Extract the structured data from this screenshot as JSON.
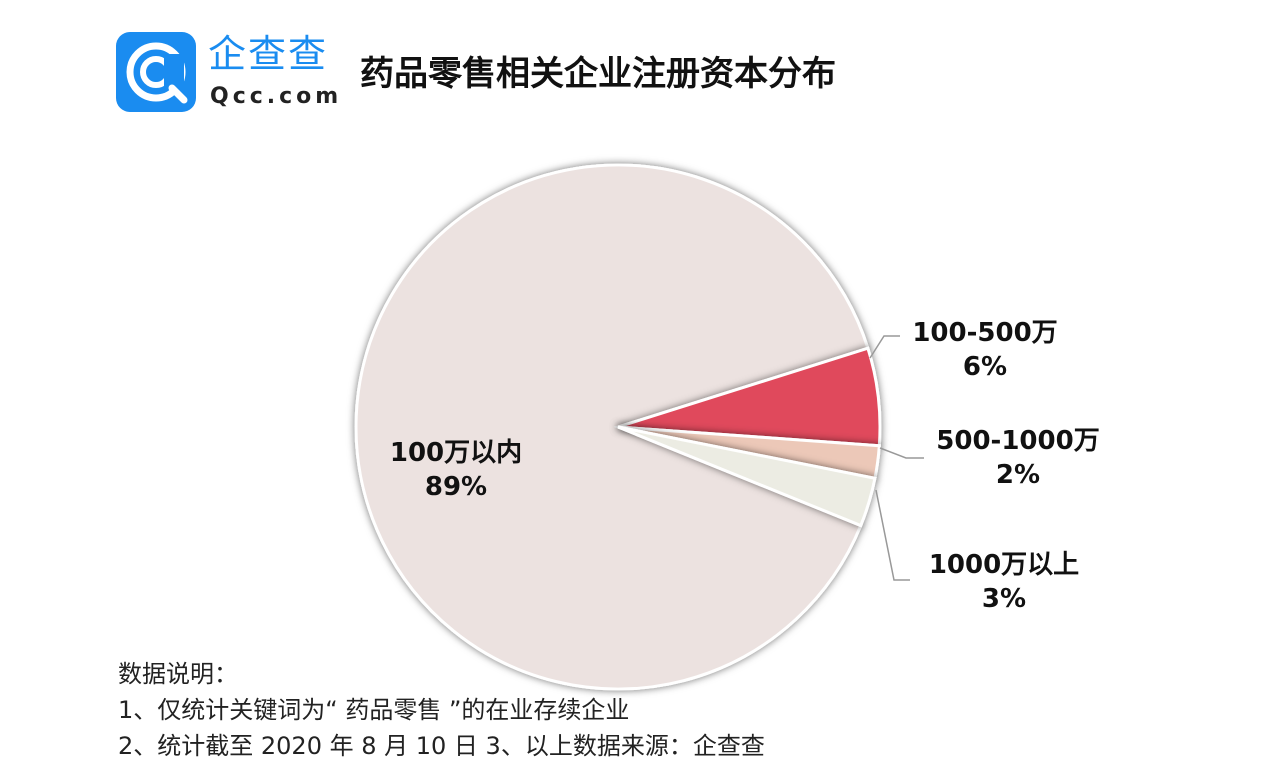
{
  "brand": {
    "name_cn": "企查查",
    "name_en": "Qcc.com",
    "color": "#1a8cf0"
  },
  "title": "药品零售相关企业注册资本分布",
  "chart_data": {
    "type": "pie",
    "title": "药品零售相关企业注册资本分布",
    "slices": [
      {
        "label": "100万以内",
        "value": 89,
        "percent_text": "89%",
        "color": "#ece2e0"
      },
      {
        "label": "100-500万",
        "value": 6,
        "percent_text": "6%",
        "color": "#e04a5c"
      },
      {
        "label": "500-1000万",
        "value": 2,
        "percent_text": "2%",
        "color": "#ecc8b8"
      },
      {
        "label": "1000万以上",
        "value": 3,
        "percent_text": "3%",
        "color": "#ecece3"
      }
    ]
  },
  "notes": {
    "heading": "数据说明：",
    "line1": "1、仅统计关键词为“ 药品零售 ”的在业存续企业",
    "line2": "2、统计截至 2020 年 8 月 10 日  3、以上数据来源：企查查"
  }
}
